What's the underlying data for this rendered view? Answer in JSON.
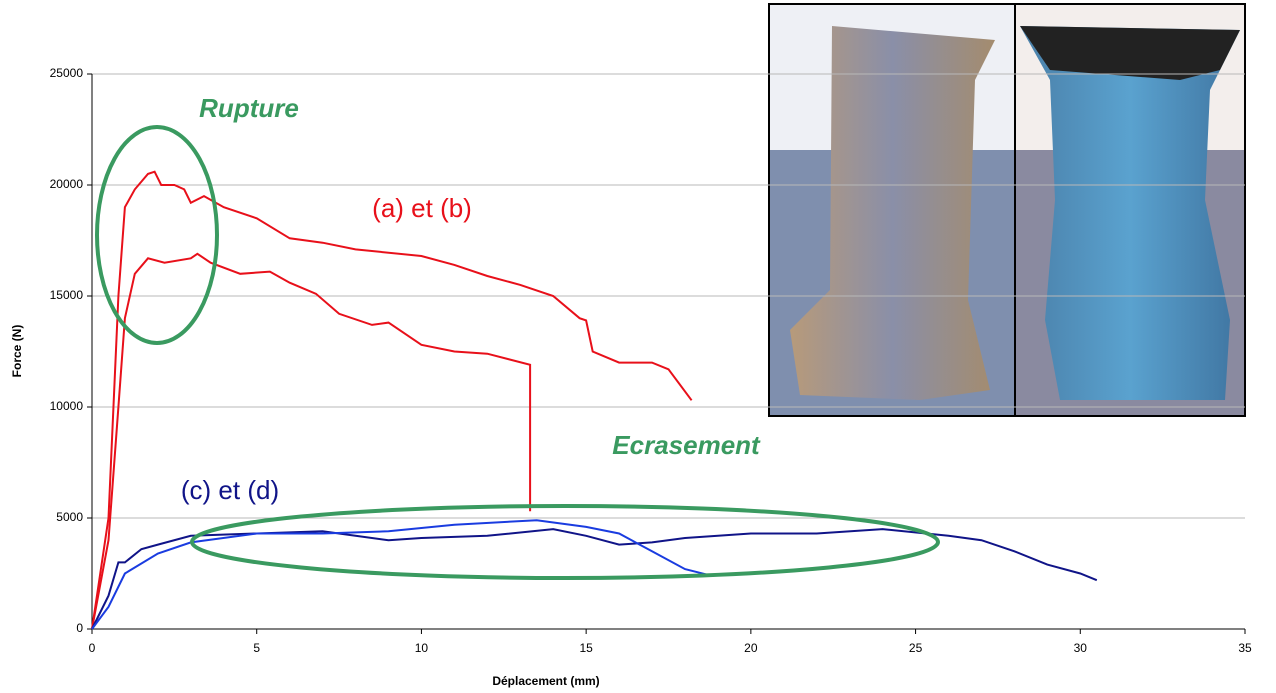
{
  "chart_data": {
    "type": "line",
    "xlabel": "Déplacement (mm)",
    "ylabel": "Force (N)",
    "xlim": [
      0,
      35
    ],
    "xticks": [
      0,
      5,
      10,
      15,
      20,
      25,
      30,
      35
    ],
    "ylim": [
      0,
      25000
    ],
    "yticks": [
      0,
      5000,
      10000,
      15000,
      20000,
      25000
    ],
    "grid": true,
    "annotations": [
      "Rupture",
      "(a) et (b)",
      "Ecrasement",
      "(c) et (d)"
    ],
    "series": [
      {
        "color": "#e8101a",
        "x": [
          0,
          0.5,
          0.8,
          1.0,
          1.3,
          1.7,
          1.9,
          2.1,
          2.5,
          2.8,
          3.0,
          3.4,
          4,
          5,
          6,
          7,
          8,
          10,
          11,
          12,
          13,
          14,
          14.8,
          15.0,
          15.2,
          16,
          17,
          17.5,
          18.2
        ],
        "values": [
          0,
          5000,
          15000,
          19000,
          19800,
          20500,
          20600,
          20000,
          20000,
          19800,
          19200,
          19500,
          19000,
          18500,
          17600,
          17400,
          17100,
          16800,
          16400,
          15900,
          15500,
          15000,
          14000,
          13900,
          12500,
          12000,
          12000,
          11700,
          10300
        ]
      },
      {
        "color": "#e8101a",
        "x": [
          0,
          0.5,
          0.8,
          1,
          1.3,
          1.7,
          2.2,
          3,
          3.2,
          3.6,
          4.5,
          5.4,
          6,
          6.8,
          7.5,
          8.5,
          9,
          10,
          11,
          12,
          13.3,
          13.3
        ],
        "values": [
          0,
          4000,
          10000,
          14000,
          16000,
          16700,
          16500,
          16700,
          16900,
          16500,
          16000,
          16100,
          15600,
          15100,
          14200,
          13700,
          13800,
          12800,
          12500,
          12400,
          11900,
          5300
        ]
      },
      {
        "color": "#101488",
        "x": [
          0,
          0.5,
          0.8,
          1,
          1.5,
          2,
          3,
          5,
          7,
          8,
          9,
          10,
          12,
          14,
          15,
          16,
          17,
          18,
          20,
          22,
          24,
          26,
          27,
          28,
          29,
          30,
          30.5
        ],
        "values": [
          0,
          1500,
          3000,
          3000,
          3600,
          3800,
          4200,
          4300,
          4400,
          4200,
          4000,
          4100,
          4200,
          4500,
          4200,
          3800,
          3900,
          4100,
          4300,
          4300,
          4500,
          4200,
          4000,
          3500,
          2900,
          2500,
          2200
        ]
      },
      {
        "color": "#1a3ce0",
        "x": [
          0,
          0.5,
          1,
          2,
          3,
          5,
          7,
          9,
          11,
          13.5,
          15,
          16,
          17,
          18,
          18.8
        ],
        "values": [
          0,
          1000,
          2500,
          3400,
          3900,
          4300,
          4300,
          4400,
          4700,
          4900,
          4600,
          4300,
          3500,
          2700,
          2400
        ]
      }
    ]
  }
}
